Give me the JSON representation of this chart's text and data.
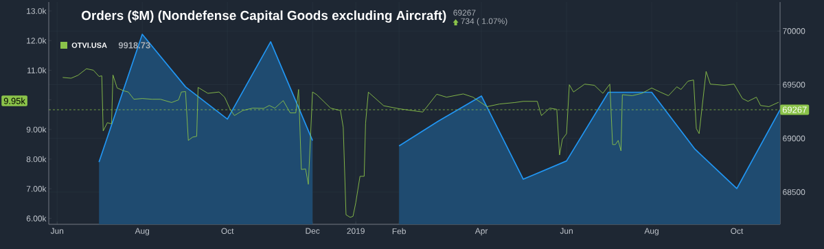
{
  "chart_data": {
    "type": "line",
    "title": "Orders ($M) (Nondefense Capital Goods excluding Aircraft)",
    "annotations": [
      "69267",
      "734 ( 1.07%)",
      "9918.73",
      "9.95k"
    ],
    "xlim": [
      "2018-05-26",
      "2019-11-01"
    ],
    "xticks": [
      {
        "value": "2018-06-01",
        "label": "Jun"
      },
      {
        "value": "2018-08-01",
        "label": "Aug"
      },
      {
        "value": "2018-10-01",
        "label": "Oct"
      },
      {
        "value": "2018-12-01",
        "label": "Dec"
      },
      {
        "value": "2019-01-01",
        "label": "2019"
      },
      {
        "value": "2019-02-01",
        "label": "Feb"
      },
      {
        "value": "2019-04-01",
        "label": "Apr"
      },
      {
        "value": "2019-06-01",
        "label": "Jun"
      },
      {
        "value": "2019-08-01",
        "label": "Aug"
      },
      {
        "value": "2019-10-01",
        "label": "Oct"
      }
    ],
    "ylim": [
      5800,
      13300
    ],
    "yticks": [
      {
        "value": 6000,
        "label": "6.00k"
      },
      {
        "value": 7000,
        "label": "7.00k"
      },
      {
        "value": 8000,
        "label": "8.00k"
      },
      {
        "value": 9000,
        "label": "9.00k"
      },
      {
        "value": 10000,
        "label": null
      },
      {
        "value": 11000,
        "label": "11.0k"
      },
      {
        "value": 12000,
        "label": "12.0k"
      },
      {
        "value": 13000,
        "label": "13.0k"
      }
    ],
    "y2lim": [
      68200,
      70270
    ],
    "y2ticks": [
      68500,
      69000,
      69500,
      70000
    ],
    "grid": true,
    "legend": "top left",
    "ref_lines": [
      {
        "axis": "y2",
        "value": 69267,
        "label": "69267",
        "color": "#8bc34a",
        "line_style": "dashed"
      }
    ],
    "series": [
      {
        "type": "area",
        "axis": "y2",
        "color": "#2196f3",
        "x": [
          "2018-07-01",
          "2018-08-01",
          "2018-09-01",
          "2018-10-01",
          "2018-11-01",
          "2018-12-01",
          "2019-01-01",
          "2019-02-01",
          "2019-03-01",
          "2019-04-01",
          "2019-05-01",
          "2019-06-01",
          "2019-07-01",
          "2019-08-01",
          "2019-09-01",
          "2019-10-01",
          "2019-11-01"
        ],
        "values": [
          68780,
          69970,
          69480,
          69180,
          69900,
          68980,
          null,
          68930,
          69160,
          69395,
          68620,
          68790,
          69430,
          69430,
          68900,
          68533,
          69267
        ]
      },
      {
        "axis": "y",
        "name": "OTVI.USA",
        "color": "#8bc34a",
        "x": [
          "2018-06-05",
          "2018-06-11",
          "2018-06-16",
          "2018-06-22",
          "2018-06-27",
          "2018-07-01",
          "2018-07-03",
          "2018-07-04",
          "2018-07-07",
          "2018-07-10",
          "2018-07-11",
          "2018-07-14",
          "2018-07-19",
          "2018-07-22",
          "2018-07-26",
          "2018-08-01",
          "2018-08-08",
          "2018-08-14",
          "2018-08-22",
          "2018-08-27",
          "2018-08-29",
          "2018-09-01",
          "2018-09-03",
          "2018-09-06",
          "2018-09-09",
          "2018-09-10",
          "2018-09-17",
          "2018-09-25",
          "2018-09-29",
          "2018-10-03",
          "2018-10-06",
          "2018-10-12",
          "2018-10-19",
          "2018-10-27",
          "2018-10-31",
          "2018-11-04",
          "2018-11-10",
          "2018-11-15",
          "2018-11-19",
          "2018-11-21",
          "2018-11-23",
          "2018-11-26",
          "2018-11-28",
          "2018-12-01",
          "2018-12-04",
          "2018-12-14",
          "2018-12-21",
          "2018-12-23",
          "2018-12-25",
          "2018-12-28",
          "2018-12-30",
          "2019-01-01",
          "2019-01-04",
          "2019-01-07",
          "2019-01-08",
          "2019-01-10",
          "2019-01-21",
          "2019-02-01",
          "2019-02-10",
          "2019-02-18",
          "2019-02-28",
          "2019-03-07",
          "2019-03-19",
          "2019-03-26",
          "2019-04-05",
          "2019-04-14",
          "2019-04-25",
          "2019-05-01",
          "2019-05-11",
          "2019-05-14",
          "2019-05-20",
          "2019-05-25",
          "2019-05-27",
          "2019-05-29",
          "2019-06-01",
          "2019-06-03",
          "2019-06-06",
          "2019-06-14",
          "2019-06-21",
          "2019-06-27",
          "2019-07-02",
          "2019-07-04",
          "2019-07-06",
          "2019-07-08",
          "2019-07-10",
          "2019-07-11",
          "2019-07-18",
          "2019-07-25",
          "2019-08-01",
          "2019-08-07",
          "2019-08-13",
          "2019-08-19",
          "2019-08-22",
          "2019-08-27",
          "2019-08-31",
          "2019-09-02",
          "2019-09-04",
          "2019-09-09",
          "2019-09-12",
          "2019-09-22",
          "2019-09-29",
          "2019-10-05",
          "2019-10-09",
          "2019-10-15",
          "2019-10-18",
          "2019-10-24",
          "2019-10-31"
        ],
        "values": [
          10755,
          10730,
          10830,
          11050,
          11000,
          10790,
          10810,
          8950,
          9230,
          9190,
          10840,
          10400,
          10300,
          10265,
          10020,
          10045,
          10020,
          10020,
          9910,
          10000,
          10265,
          10280,
          8630,
          8740,
          8770,
          10420,
          10220,
          10265,
          10090,
          9680,
          9470,
          9640,
          9720,
          9710,
          9810,
          9720,
          9975,
          9560,
          9560,
          10350,
          7650,
          7670,
          7150,
          10265,
          10175,
          9720,
          9640,
          9070,
          6120,
          6035,
          6070,
          6535,
          7420,
          7420,
          9210,
          10260,
          9800,
          9700,
          9640,
          9590,
          10190,
          10090,
          10200,
          10090,
          9770,
          9860,
          9910,
          9950,
          9950,
          9470,
          9720,
          9680,
          8140,
          8670,
          8860,
          10510,
          10265,
          10530,
          10490,
          10220,
          10530,
          8490,
          8490,
          8630,
          8280,
          10175,
          10140,
          10220,
          10400,
          10265,
          10140,
          10440,
          10350,
          10630,
          10670,
          9030,
          8860,
          10960,
          10530,
          10490,
          10530,
          10045,
          9950,
          10090,
          9810,
          9770,
          9920
        ]
      }
    ]
  }
}
